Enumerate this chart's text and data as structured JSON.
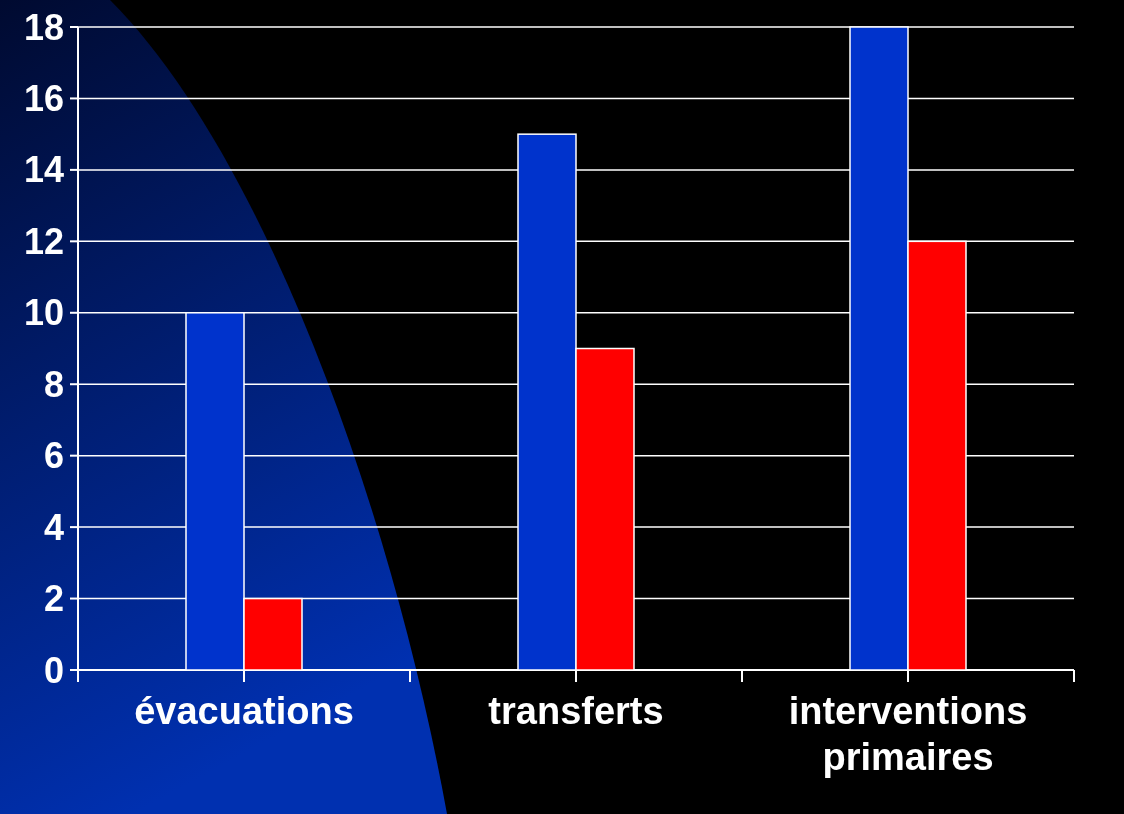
{
  "chart_data": {
    "type": "bar",
    "categories": [
      "évacuations",
      "transferts",
      "interventions primaires"
    ],
    "series": [
      {
        "color": "#0033cc",
        "values": [
          10,
          15,
          18
        ]
      },
      {
        "color": "#ff0000",
        "values": [
          2,
          9,
          12
        ]
      }
    ],
    "ylim": [
      0,
      18
    ],
    "yticks": [
      0,
      2,
      4,
      6,
      8,
      10,
      12,
      14,
      16,
      18
    ],
    "grid": "y"
  }
}
